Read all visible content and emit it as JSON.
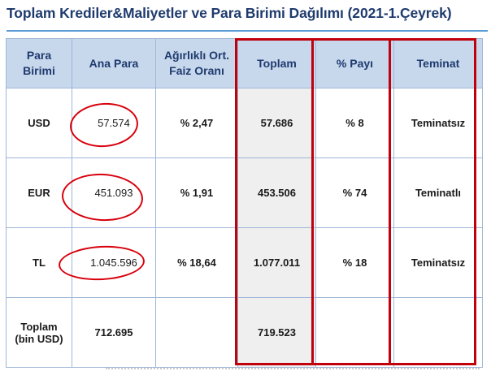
{
  "title": "Toplam Krediler&Maliyetler ve Para Birimi Dağılımı (2021-1.Çeyrek)",
  "table": {
    "headers": {
      "para_birimi_1": "Para",
      "para_birimi_2": "Birimi",
      "ana_para": "Ana Para",
      "faiz_1": "Ağırlıklı Ort.",
      "faiz_2": "Faiz Oranı",
      "toplam": "Toplam",
      "payi": "% Payı",
      "teminat": "Teminat"
    },
    "rows": [
      {
        "currency": "USD",
        "principal": "57.574",
        "rate": "% 2,47",
        "total": "57.686",
        "share": "% 8",
        "collateral": "Teminatsız"
      },
      {
        "currency": "EUR",
        "principal": "451.093",
        "rate": "% 1,91",
        "total": "453.506",
        "share": "% 74",
        "collateral": "Teminatlı"
      },
      {
        "currency": "TL",
        "principal": "1.045.596",
        "rate": "% 18,64",
        "total": "1.077.011",
        "share": "% 18",
        "collateral": "Teminatsız"
      }
    ],
    "total_row": {
      "label_1": "Toplam",
      "label_2": "(bin USD)",
      "principal": "712.695",
      "total": "719.523"
    }
  },
  "colors": {
    "title": "#1f3b6e",
    "header_bg": "#c7d7ec",
    "highlight": "#c0000b",
    "rule": "#5b9bd5"
  }
}
